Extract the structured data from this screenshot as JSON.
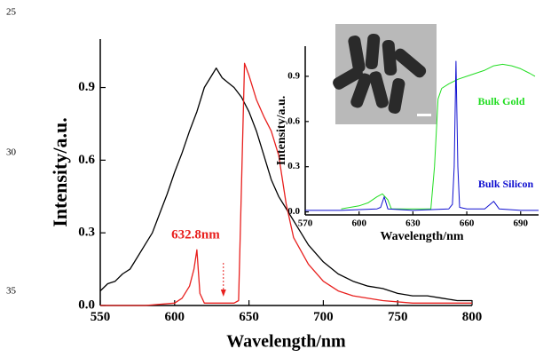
{
  "line_numbers": [
    "25",
    "30",
    "35"
  ],
  "chart_data": [
    {
      "type": "line",
      "xlabel": "Wavelength/nm",
      "ylabel": "Intensity/a.u.",
      "xlim": [
        550,
        800
      ],
      "xticks": [
        550,
        600,
        650,
        700,
        750,
        800
      ],
      "ylim": [
        0,
        1.1
      ],
      "yticks": [
        {
          "value": 0,
          "label": "0.0"
        },
        0.3,
        0.6,
        0.9
      ],
      "series": [
        {
          "color": "#000000",
          "x": [
            550,
            555,
            560,
            565,
            570,
            575,
            580,
            585,
            590,
            595,
            600,
            605,
            610,
            615,
            620,
            625,
            628,
            632,
            636,
            640,
            645,
            650,
            655,
            660,
            665,
            670,
            675,
            680,
            690,
            700,
            710,
            720,
            730,
            740,
            750,
            760,
            770,
            780,
            790,
            800
          ],
          "values": [
            0.06,
            0.09,
            0.1,
            0.13,
            0.15,
            0.2,
            0.25,
            0.3,
            0.38,
            0.46,
            0.55,
            0.63,
            0.72,
            0.8,
            0.9,
            0.95,
            0.98,
            0.94,
            0.92,
            0.9,
            0.86,
            0.8,
            0.72,
            0.62,
            0.52,
            0.45,
            0.4,
            0.35,
            0.25,
            0.18,
            0.13,
            0.1,
            0.08,
            0.07,
            0.05,
            0.04,
            0.04,
            0.03,
            0.02,
            0.02
          ]
        },
        {
          "color": "#e8201e",
          "x": [
            550,
            580,
            600,
            605,
            610,
            613,
            615,
            617,
            620,
            640,
            643,
            645,
            647,
            650,
            655,
            660,
            665,
            670,
            675,
            680,
            690,
            700,
            710,
            720,
            740,
            760,
            780,
            800
          ],
          "values": [
            0.0,
            0.0,
            0.01,
            0.03,
            0.08,
            0.15,
            0.23,
            0.05,
            0.01,
            0.01,
            0.02,
            0.5,
            1.0,
            0.95,
            0.85,
            0.78,
            0.72,
            0.62,
            0.42,
            0.28,
            0.17,
            0.1,
            0.06,
            0.04,
            0.02,
            0.01,
            0.01,
            0.01
          ]
        }
      ],
      "annotations": [
        {
          "text": "632.8nm",
          "x": 632.8,
          "color": "#e8201e"
        }
      ]
    },
    {
      "type": "line",
      "xlabel": "Wavelength/nm",
      "ylabel": "Intensity/a.u.",
      "xlim": [
        570,
        700
      ],
      "xticks": [
        570,
        600,
        630,
        660,
        690
      ],
      "ylim": [
        -0.02,
        1.1
      ],
      "yticks": [
        {
          "value": 0,
          "label": "0.0"
        },
        0.3,
        0.6,
        0.9
      ],
      "series": [
        {
          "name": "Bulk Gold",
          "color": "#22dd22",
          "x": [
            590,
            600,
            605,
            610,
            613,
            616,
            618,
            630,
            640,
            642,
            644,
            646,
            650,
            655,
            660,
            665,
            670,
            675,
            680,
            685,
            690,
            695,
            698
          ],
          "values": [
            0.02,
            0.04,
            0.06,
            0.1,
            0.12,
            0.08,
            0.02,
            0.02,
            0.02,
            0.3,
            0.75,
            0.82,
            0.85,
            0.88,
            0.9,
            0.92,
            0.94,
            0.97,
            0.98,
            0.97,
            0.95,
            0.92,
            0.9
          ]
        },
        {
          "name": "Bulk Silicon",
          "color": "#1010d0",
          "x": [
            570,
            590,
            610,
            612,
            614,
            616,
            630,
            650,
            652,
            653,
            654,
            655,
            656,
            660,
            670,
            675,
            678,
            690,
            700
          ],
          "values": [
            0.01,
            0.01,
            0.02,
            0.03,
            0.1,
            0.02,
            0.01,
            0.02,
            0.05,
            0.3,
            1.0,
            0.3,
            0.03,
            0.02,
            0.02,
            0.07,
            0.02,
            0.01,
            0.01
          ]
        }
      ]
    }
  ]
}
